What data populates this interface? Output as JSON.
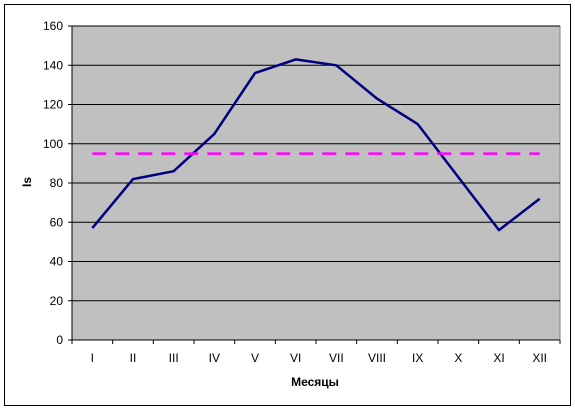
{
  "chart_data": {
    "type": "line",
    "categories": [
      "I",
      "II",
      "III",
      "IV",
      "V",
      "VI",
      "VII",
      "VIII",
      "IX",
      "X",
      "XI",
      "XII"
    ],
    "series": [
      {
        "values": [
          57,
          82,
          86,
          105,
          136,
          143,
          140,
          123,
          110,
          83,
          56,
          72
        ],
        "color": "#000080",
        "style": "solid"
      },
      {
        "values": [
          95,
          95,
          95,
          95,
          95,
          95,
          95,
          95,
          95,
          95,
          95,
          95
        ],
        "color": "#ff00ff",
        "style": "dashed"
      }
    ],
    "title": "",
    "xlabel": "Месяцы",
    "ylabel": "Is",
    "ylim": [
      0,
      160
    ],
    "yticks": [
      0,
      20,
      40,
      60,
      80,
      100,
      120,
      140,
      160
    ],
    "grid": "horizontal",
    "plot_background": "#c0c0c0"
  }
}
